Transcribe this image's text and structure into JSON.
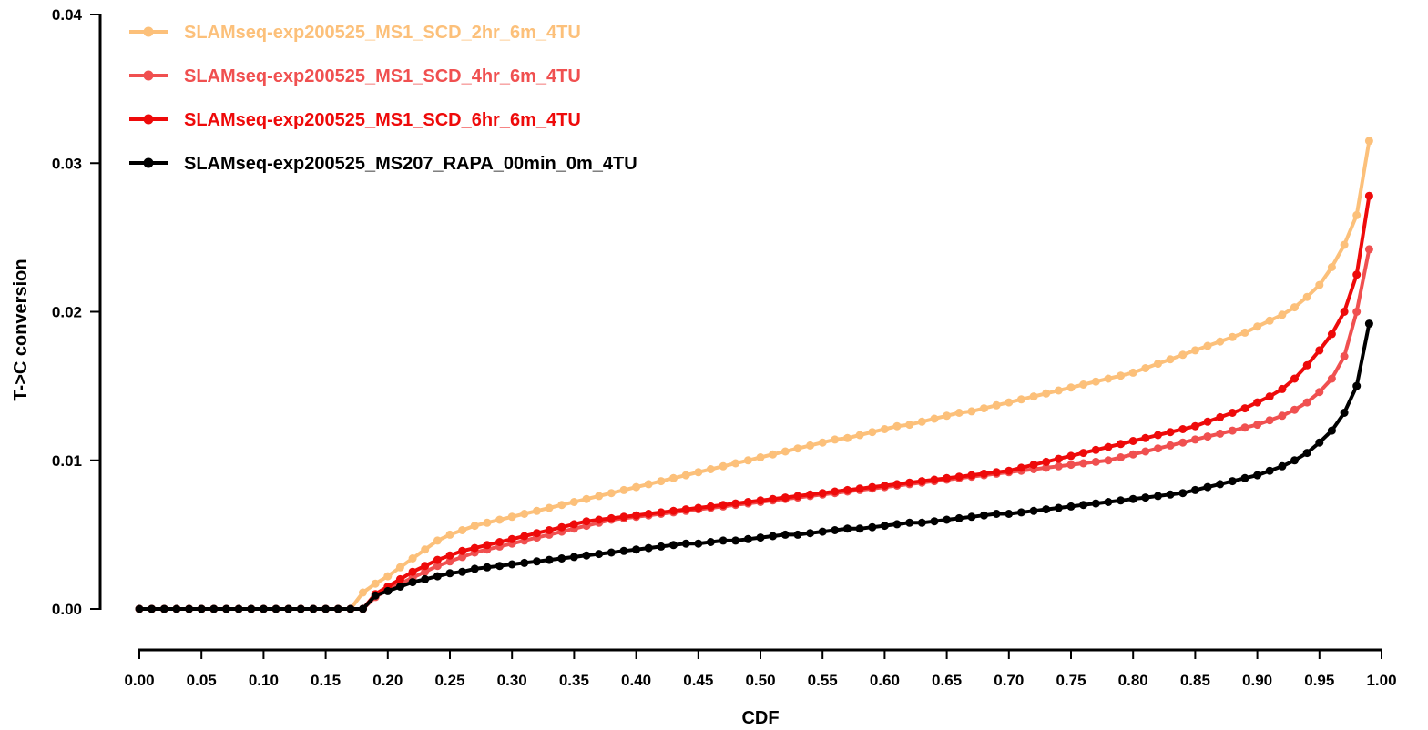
{
  "chart_data": {
    "type": "line",
    "title": "",
    "xlabel": "CDF",
    "ylabel": "T->C conversion",
    "xlim": [
      0,
      1
    ],
    "ylim": [
      0,
      0.04
    ],
    "x_ticks": [
      "0.00",
      "0.05",
      "0.10",
      "0.15",
      "0.20",
      "0.25",
      "0.30",
      "0.35",
      "0.40",
      "0.45",
      "0.50",
      "0.55",
      "0.60",
      "0.65",
      "0.70",
      "0.75",
      "0.80",
      "0.85",
      "0.90",
      "0.95",
      "1.00"
    ],
    "y_ticks": [
      "0.00",
      "0.01",
      "0.02",
      "0.03",
      "0.04"
    ],
    "grid": false,
    "legend_position": "top-left",
    "x": [
      0.0,
      0.01,
      0.02,
      0.03,
      0.04,
      0.05,
      0.06,
      0.07,
      0.08,
      0.09,
      0.1,
      0.11,
      0.12,
      0.13,
      0.14,
      0.15,
      0.16,
      0.17,
      0.18,
      0.19,
      0.2,
      0.21,
      0.22,
      0.23,
      0.24,
      0.25,
      0.26,
      0.27,
      0.28,
      0.29,
      0.3,
      0.31,
      0.32,
      0.33,
      0.34,
      0.35,
      0.36,
      0.37,
      0.38,
      0.39,
      0.4,
      0.41,
      0.42,
      0.43,
      0.44,
      0.45,
      0.46,
      0.47,
      0.48,
      0.49,
      0.5,
      0.51,
      0.52,
      0.53,
      0.54,
      0.55,
      0.56,
      0.57,
      0.58,
      0.59,
      0.6,
      0.61,
      0.62,
      0.63,
      0.64,
      0.65,
      0.66,
      0.67,
      0.68,
      0.69,
      0.7,
      0.71,
      0.72,
      0.73,
      0.74,
      0.75,
      0.76,
      0.77,
      0.78,
      0.79,
      0.8,
      0.81,
      0.82,
      0.83,
      0.84,
      0.85,
      0.86,
      0.87,
      0.88,
      0.89,
      0.9,
      0.91,
      0.92,
      0.93,
      0.94,
      0.95,
      0.96,
      0.97,
      0.98,
      0.99
    ],
    "series": [
      {
        "name": "SLAMseq-exp200525_MS1_SCD_2hr_6m_4TU",
        "color": "#fcc07a",
        "values": [
          0,
          0,
          0,
          0,
          0,
          0,
          0,
          0,
          0,
          0,
          0,
          0,
          0,
          0,
          0,
          0,
          0,
          0,
          0.0011,
          0.0017,
          0.0022,
          0.0028,
          0.0034,
          0.004,
          0.0046,
          0.005,
          0.0053,
          0.0056,
          0.0058,
          0.006,
          0.0062,
          0.0064,
          0.0066,
          0.0068,
          0.007,
          0.0072,
          0.0074,
          0.0076,
          0.0078,
          0.008,
          0.0082,
          0.0084,
          0.0086,
          0.0088,
          0.009,
          0.0092,
          0.0094,
          0.0096,
          0.0098,
          0.01,
          0.0102,
          0.0104,
          0.0106,
          0.0108,
          0.011,
          0.0112,
          0.0114,
          0.0115,
          0.0117,
          0.0119,
          0.0121,
          0.0123,
          0.0124,
          0.0126,
          0.0128,
          0.013,
          0.0132,
          0.0133,
          0.0135,
          0.0137,
          0.0139,
          0.0141,
          0.0143,
          0.0145,
          0.0147,
          0.0149,
          0.0151,
          0.0153,
          0.0155,
          0.0157,
          0.0159,
          0.0162,
          0.0165,
          0.0168,
          0.0171,
          0.0174,
          0.0177,
          0.018,
          0.0183,
          0.0186,
          0.019,
          0.0194,
          0.0198,
          0.0203,
          0.021,
          0.0218,
          0.023,
          0.0245,
          0.0265,
          0.0315
        ]
      },
      {
        "name": "SLAMseq-exp200525_MS1_SCD_4hr_6m_4TU",
        "color": "#f05050",
        "values": [
          0,
          0,
          0,
          0,
          0,
          0,
          0,
          0,
          0,
          0,
          0,
          0,
          0,
          0,
          0,
          0,
          0,
          0,
          0,
          0.0008,
          0.0013,
          0.0017,
          0.0021,
          0.0025,
          0.0029,
          0.0032,
          0.0035,
          0.0038,
          0.004,
          0.0042,
          0.0044,
          0.0046,
          0.0048,
          0.005,
          0.0052,
          0.0054,
          0.0056,
          0.0058,
          0.006,
          0.0061,
          0.0062,
          0.0063,
          0.0064,
          0.0065,
          0.0066,
          0.0067,
          0.0068,
          0.0069,
          0.007,
          0.0071,
          0.0072,
          0.0073,
          0.0074,
          0.0075,
          0.0076,
          0.0077,
          0.0078,
          0.0079,
          0.008,
          0.0081,
          0.0082,
          0.0083,
          0.0084,
          0.0085,
          0.0086,
          0.0087,
          0.0088,
          0.0089,
          0.009,
          0.0091,
          0.0092,
          0.0093,
          0.0094,
          0.0095,
          0.0096,
          0.0097,
          0.0098,
          0.0099,
          0.01,
          0.0102,
          0.0104,
          0.0106,
          0.0108,
          0.011,
          0.0112,
          0.0114,
          0.0116,
          0.0118,
          0.012,
          0.0122,
          0.0124,
          0.0127,
          0.013,
          0.0134,
          0.0139,
          0.0146,
          0.0155,
          0.017,
          0.02,
          0.0242
        ]
      },
      {
        "name": "SLAMseq-exp200525_MS1_SCD_6hr_6m_4TU",
        "color": "#ee0a0a",
        "values": [
          0,
          0,
          0,
          0,
          0,
          0,
          0,
          0,
          0,
          0,
          0,
          0,
          0,
          0,
          0,
          0,
          0,
          0,
          0,
          0.001,
          0.0015,
          0.002,
          0.0025,
          0.0029,
          0.0033,
          0.0036,
          0.0039,
          0.0041,
          0.0043,
          0.0045,
          0.0047,
          0.0049,
          0.0051,
          0.0053,
          0.0055,
          0.0057,
          0.0059,
          0.006,
          0.0061,
          0.0062,
          0.0063,
          0.0064,
          0.0065,
          0.0066,
          0.0067,
          0.0068,
          0.0069,
          0.007,
          0.0071,
          0.0072,
          0.0073,
          0.0074,
          0.0075,
          0.0076,
          0.0077,
          0.0078,
          0.0079,
          0.008,
          0.0081,
          0.0082,
          0.0083,
          0.0084,
          0.0085,
          0.0086,
          0.0087,
          0.0088,
          0.0089,
          0.009,
          0.0091,
          0.0092,
          0.0093,
          0.0095,
          0.0097,
          0.0099,
          0.0101,
          0.0103,
          0.0105,
          0.0107,
          0.0109,
          0.0111,
          0.0113,
          0.0115,
          0.0117,
          0.0119,
          0.0121,
          0.0123,
          0.0126,
          0.0129,
          0.0132,
          0.0135,
          0.0139,
          0.0143,
          0.0148,
          0.0155,
          0.0164,
          0.0174,
          0.0185,
          0.02,
          0.0225,
          0.0278
        ]
      },
      {
        "name": "SLAMseq-exp200525_MS207_RAPA_00min_0m_4TU",
        "color": "#000000",
        "values": [
          0,
          0,
          0,
          0,
          0,
          0,
          0,
          0,
          0,
          0,
          0,
          0,
          0,
          0,
          0,
          0,
          0,
          0,
          0,
          0.0009,
          0.0012,
          0.0015,
          0.0018,
          0.002,
          0.0022,
          0.0024,
          0.0025,
          0.0027,
          0.0028,
          0.0029,
          0.003,
          0.0031,
          0.0032,
          0.0033,
          0.0034,
          0.0035,
          0.0036,
          0.0037,
          0.0038,
          0.0039,
          0.004,
          0.0041,
          0.0042,
          0.0043,
          0.0044,
          0.0044,
          0.0045,
          0.0046,
          0.0046,
          0.0047,
          0.0048,
          0.0049,
          0.005,
          0.005,
          0.0051,
          0.0052,
          0.0053,
          0.0054,
          0.0054,
          0.0055,
          0.0056,
          0.0057,
          0.0058,
          0.0058,
          0.0059,
          0.006,
          0.0061,
          0.0062,
          0.0063,
          0.0064,
          0.0064,
          0.0065,
          0.0066,
          0.0067,
          0.0068,
          0.0069,
          0.007,
          0.0071,
          0.0072,
          0.0073,
          0.0074,
          0.0075,
          0.0076,
          0.0077,
          0.0078,
          0.008,
          0.0082,
          0.0084,
          0.0086,
          0.0088,
          0.009,
          0.0093,
          0.0096,
          0.01,
          0.0105,
          0.0112,
          0.012,
          0.0132,
          0.015,
          0.0192
        ]
      }
    ]
  }
}
